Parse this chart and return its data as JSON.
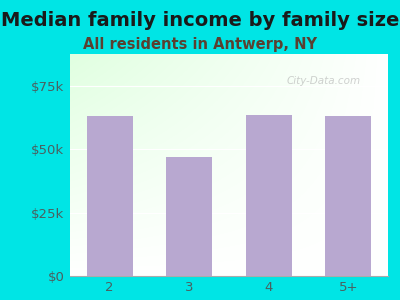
{
  "title": "Median family income by family size",
  "subtitle": "All residents in Antwerp, NY",
  "categories": [
    "2",
    "3",
    "4",
    "5+"
  ],
  "values": [
    63000,
    47000,
    63500,
    63000
  ],
  "bar_color": "#b8a8d0",
  "background_color": "#00e5e5",
  "title_color": "#1a1a1a",
  "subtitle_color": "#5a4030",
  "tick_label_color": "#4a6060",
  "ylim": [
    0,
    87500
  ],
  "yticks": [
    0,
    25000,
    50000,
    75000
  ],
  "ytick_labels": [
    "$0",
    "$25k",
    "$50k",
    "$75k"
  ],
  "watermark": "City-Data.com",
  "title_fontsize": 14,
  "subtitle_fontsize": 10.5,
  "tick_fontsize": 9.5
}
